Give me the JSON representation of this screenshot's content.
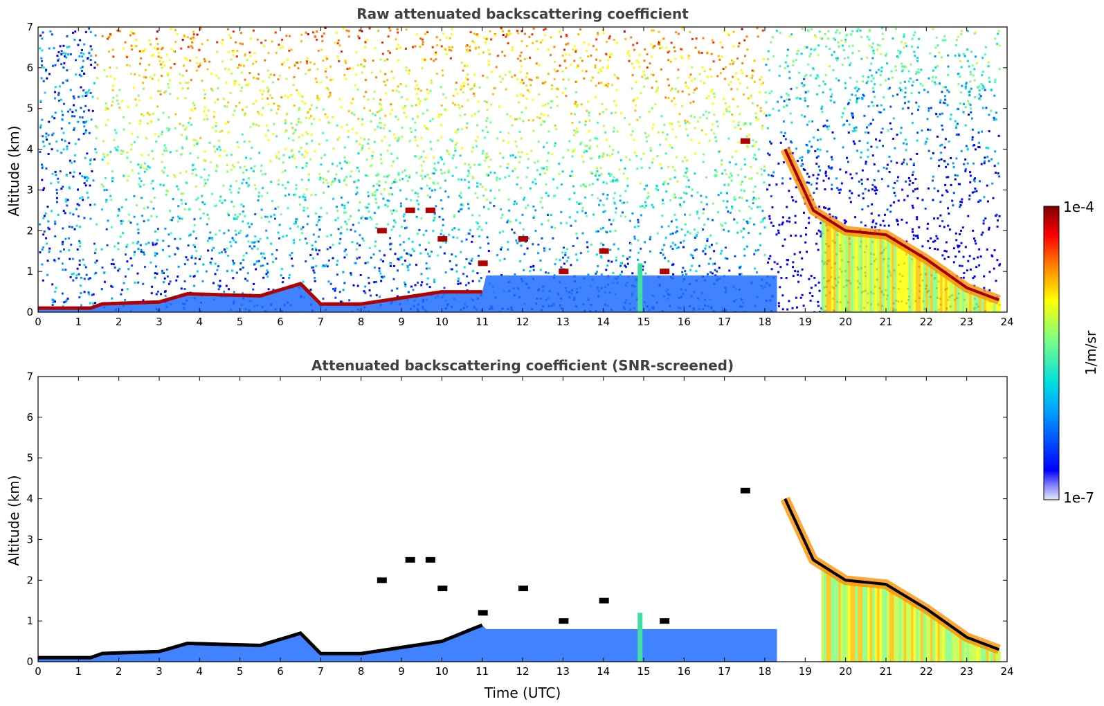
{
  "chart_data": [
    {
      "type": "heatmap",
      "title": "Raw attenuated backscattering coefficient",
      "xlabel": "",
      "ylabel": "Altitude (km)",
      "xlim": [
        0,
        24
      ],
      "ylim": [
        0,
        7
      ],
      "xticks": [
        "0",
        "1",
        "2",
        "3",
        "4",
        "5",
        "6",
        "7",
        "8",
        "9",
        "10",
        "11",
        "12",
        "13",
        "14",
        "15",
        "16",
        "17",
        "18",
        "19",
        "20",
        "21",
        "22",
        "23",
        "24"
      ],
      "yticks": [
        "0",
        "1",
        "2",
        "3",
        "4",
        "5",
        "6",
        "7"
      ],
      "features": {
        "boundary_layer_top_km": [
          [
            0,
            0.1
          ],
          [
            1.4,
            0.1
          ],
          [
            1.5,
            0.2
          ],
          [
            3,
            0.25
          ],
          [
            3.7,
            0.45
          ],
          [
            5.5,
            0.4
          ],
          [
            6.5,
            0.7
          ],
          [
            7,
            0.2
          ],
          [
            8,
            0.2
          ],
          [
            10,
            0.5
          ],
          [
            11,
            0.5
          ]
        ],
        "descending_cloud_top_km": [
          [
            18.5,
            4.0
          ],
          [
            19.2,
            2.5
          ],
          [
            20,
            2.0
          ],
          [
            21,
            1.9
          ],
          [
            22,
            1.3
          ],
          [
            23,
            0.6
          ],
          [
            23.8,
            0.3
          ]
        ],
        "elevated_cloud_fragments": [
          [
            8.5,
            2.0
          ],
          [
            9.2,
            2.5
          ],
          [
            9.7,
            2.5
          ],
          [
            10,
            1.8
          ],
          [
            11,
            1.2
          ],
          [
            12,
            1.8
          ],
          [
            13,
            1.0
          ],
          [
            14,
            1.5
          ],
          [
            15.5,
            1.0
          ],
          [
            17.5,
            4.2
          ]
        ]
      }
    },
    {
      "type": "heatmap",
      "title": "Attenuated backscattering coefficient (SNR-screened)",
      "xlabel": "Time (UTC)",
      "ylabel": "Altitude (km)",
      "xlim": [
        0,
        24
      ],
      "ylim": [
        0,
        7
      ],
      "xticks": [
        "0",
        "1",
        "2",
        "3",
        "4",
        "5",
        "6",
        "7",
        "8",
        "9",
        "10",
        "11",
        "12",
        "13",
        "14",
        "15",
        "16",
        "17",
        "18",
        "19",
        "20",
        "21",
        "22",
        "23",
        "24"
      ],
      "yticks": [
        "0",
        "1",
        "2",
        "3",
        "4",
        "5",
        "6",
        "7"
      ],
      "features": {
        "boundary_layer_top_km": [
          [
            0,
            0.1
          ],
          [
            1.4,
            0.1
          ],
          [
            1.5,
            0.2
          ],
          [
            3,
            0.25
          ],
          [
            3.7,
            0.45
          ],
          [
            5.5,
            0.4
          ],
          [
            6.5,
            0.7
          ],
          [
            7,
            0.2
          ],
          [
            8,
            0.2
          ],
          [
            10,
            0.5
          ],
          [
            11,
            0.9
          ],
          [
            17.5,
            0.8
          ]
        ],
        "descending_cloud_top_km": [
          [
            18.5,
            4.0
          ],
          [
            19.2,
            2.5
          ],
          [
            20,
            2.0
          ],
          [
            21,
            1.9
          ],
          [
            22,
            1.3
          ],
          [
            23,
            0.6
          ],
          [
            23.8,
            0.3
          ]
        ]
      }
    }
  ],
  "colorbar": {
    "label": "1/m/sr",
    "max_label": "1e-4",
    "min_label": "1e-7",
    "scale": "log",
    "colormap": [
      "#e8e8f8",
      "#0000ff",
      "#00a0ff",
      "#00e0e0",
      "#80ff80",
      "#ffff00",
      "#ff8000",
      "#ff0000",
      "#800000"
    ]
  }
}
